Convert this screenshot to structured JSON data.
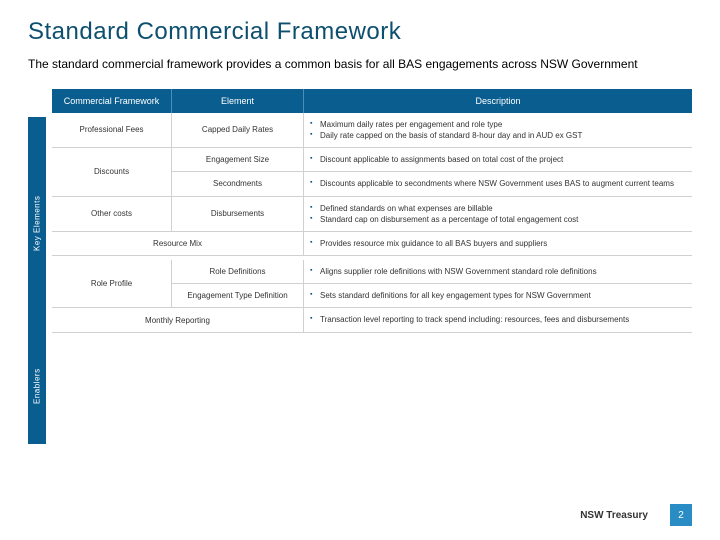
{
  "colors": {
    "title": "#0d4f6e",
    "subtitle": "#333333",
    "header_bg": "#0a5e8f",
    "header_border": "#4a8fb8",
    "cell_border": "#d0d0d0",
    "bullet": "#0a5e8f",
    "pagenum_bg": "#2a8cc4"
  },
  "title": "Standard Commercial Framework",
  "subtitle": "The standard commercial framework provides a common basis for all BAS engagements across NSW Government",
  "rails": {
    "key_elements": "Key Elements",
    "enablers": "Enablers"
  },
  "headers": {
    "c1": "Commercial Framework",
    "c2": "Element",
    "c3": "Description"
  },
  "key_elements": [
    {
      "c1": "Professional Fees",
      "c2": "Capped Daily Rates",
      "c3": [
        "Maximum daily rates per engagement and role type",
        "Daily rate capped on the basis of standard 8-hour day and in AUD ex GST"
      ]
    },
    {
      "c1": "Discounts",
      "sub": [
        {
          "c2": "Engagement Size",
          "c3": [
            "Discount applicable to assignments based on total cost of the project"
          ]
        },
        {
          "c2": "Secondments",
          "c3": [
            "Discounts applicable to secondments where NSW Government uses BAS to augment current teams"
          ]
        }
      ]
    },
    {
      "c1": "Other costs",
      "c2": "Disbursements",
      "c3": [
        "Defined standards on what expenses are billable",
        "Standard cap on disbursement as a percentage of total engagement cost"
      ]
    },
    {
      "merged": "Resource Mix",
      "c3": [
        "Provides resource mix guidance to all BAS buyers and suppliers"
      ]
    }
  ],
  "enablers": [
    {
      "c1": "Role Profile",
      "sub": [
        {
          "c2": "Role Definitions",
          "c3": [
            "Aligns supplier role definitions with NSW Government standard role definitions"
          ]
        },
        {
          "c2": "Engagement Type Definition",
          "c3": [
            "Sets standard definitions for all key engagement types for NSW Government"
          ]
        }
      ]
    },
    {
      "merged": "Monthly Reporting",
      "c3": [
        "Transaction level reporting to track spend including: resources, fees and disbursements"
      ]
    }
  ],
  "footer": {
    "org": "NSW Treasury",
    "page": "2"
  }
}
